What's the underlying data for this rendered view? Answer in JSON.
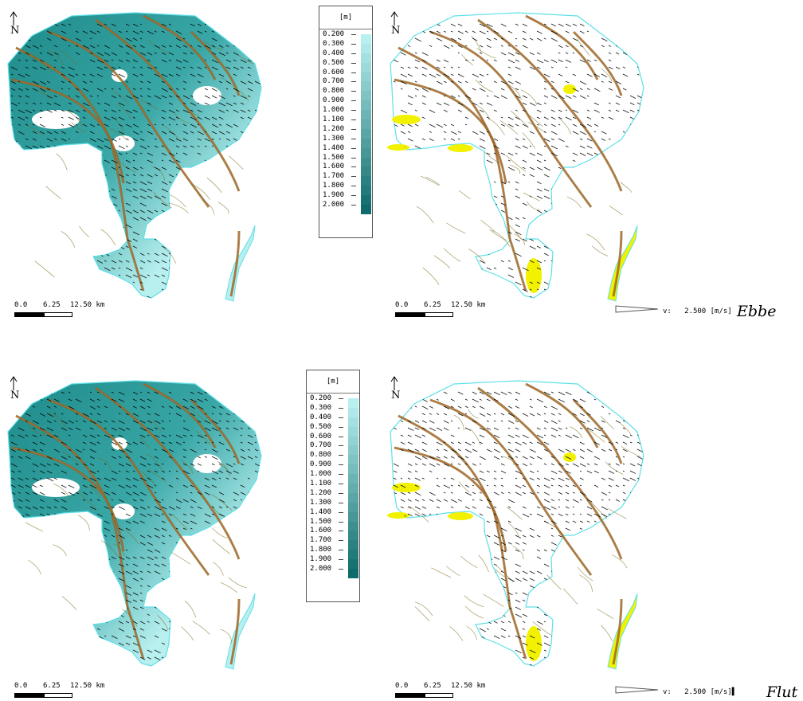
{
  "figure": {
    "scale": {
      "tick0": "0.0",
      "tick1": "6.25",
      "tick2": "12.50 km"
    },
    "north_label": "N",
    "legend": {
      "unit": "[m]",
      "levels": [
        "0.200",
        "0.300",
        "0.400",
        "0.500",
        "0.600",
        "0.700",
        "0.800",
        "0.900",
        "1.000",
        "1.100",
        "1.200",
        "1.300",
        "1.400",
        "1.500",
        "1.600",
        "1.700",
        "1.800",
        "1.900",
        "2.000"
      ],
      "color_min": "#b8efef",
      "color_max": "#0f6b6b"
    },
    "velocity_ref": {
      "prefix": "v:",
      "value": "2.500",
      "unit_top": "[m/s]",
      "unit_bottom": "[m/s]▌"
    },
    "rows": [
      {
        "caption": "Ebbe"
      },
      {
        "caption": "Flut"
      }
    ],
    "colors": {
      "water_outline": "#5ee0e8",
      "shallow": "#b8efef",
      "deep": "#1e8a8a",
      "channel_contour": "#7a6a1a",
      "channel_core": "#d2603a",
      "dry_flat": "#f2f200",
      "vector": "#000000"
    },
    "icons": [
      "north-arrow-icon",
      "velocity-arrow-icon"
    ]
  }
}
